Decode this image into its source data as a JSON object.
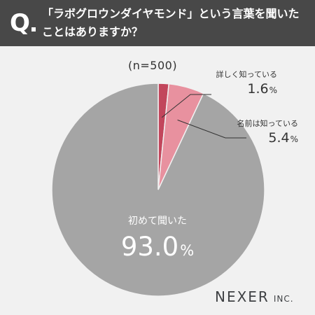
{
  "question": {
    "mark": "Q",
    "line1": "「ラボグロウンダイヤモンド」という言葉を聞いた",
    "line2": "ことはありますか？"
  },
  "sample_label": "(n=500)",
  "chart_data": {
    "type": "pie",
    "slices": [
      {
        "label": "詳しく知っている",
        "value": 1.6,
        "display": "1.6",
        "unit": "%",
        "color": "#c2465c"
      },
      {
        "label": "名前は知っている",
        "value": 5.4,
        "display": "5.4",
        "unit": "%",
        "color": "#e8919f"
      },
      {
        "label": "初めて聞いた",
        "value": 93.0,
        "display": "93.0",
        "unit": "%",
        "color": "#a5a5a5"
      }
    ],
    "start_angle": "12 o'clock",
    "direction": "clockwise"
  },
  "brand": {
    "main": "NEXER",
    "sub": "INC."
  },
  "colors": {
    "header_bg": "#484848",
    "background": "#f1f1f1",
    "text": "#333333"
  }
}
